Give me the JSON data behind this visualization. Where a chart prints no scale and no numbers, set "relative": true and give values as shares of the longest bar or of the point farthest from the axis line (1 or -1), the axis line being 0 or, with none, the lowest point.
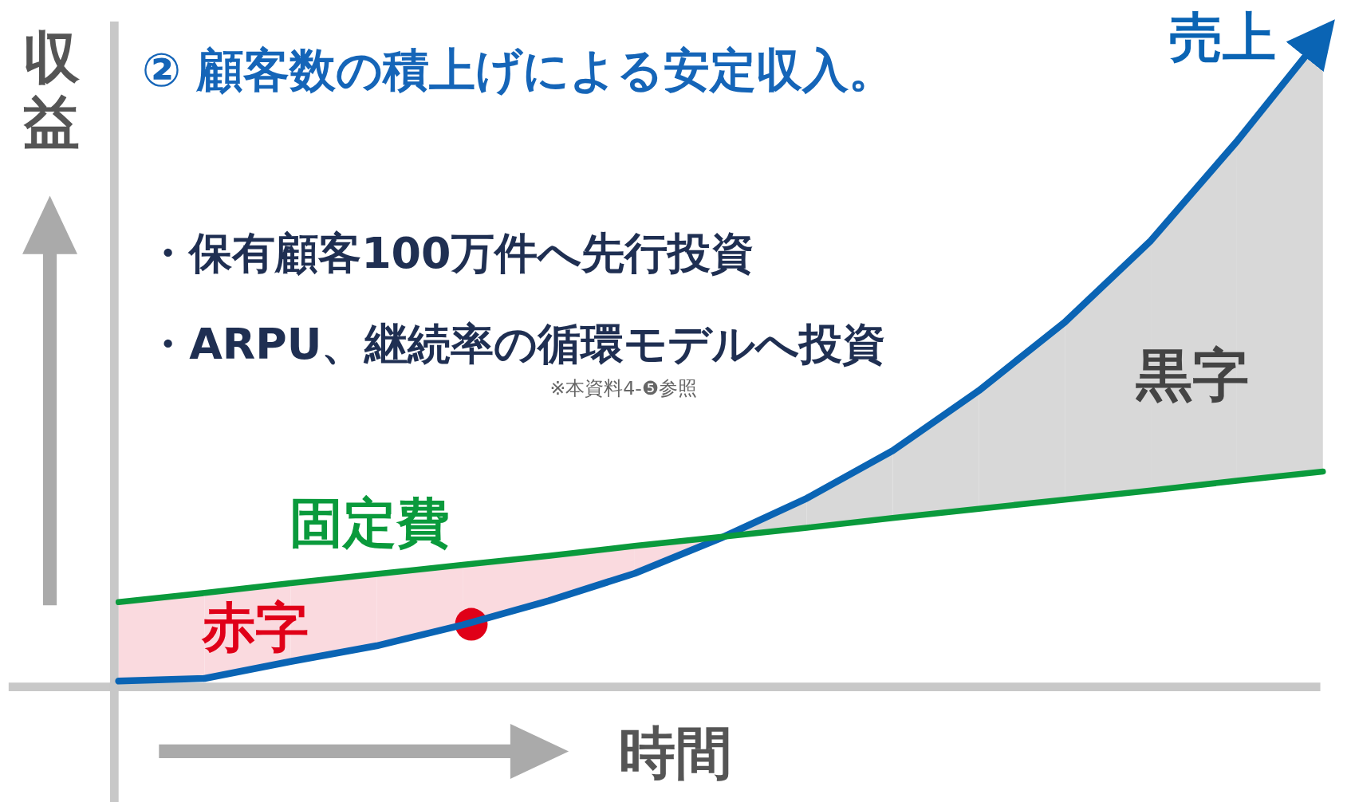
{
  "chart_data": {
    "type": "line",
    "relative": true,
    "legend": false,
    "title": "② 顧客数の積上げによる安定収入。",
    "xlabel": "時間",
    "ylabel": "収益",
    "categories": [
      null,
      null,
      null,
      null,
      null,
      null,
      null,
      null,
      null,
      null,
      null,
      null,
      null,
      null,
      null
    ],
    "series": [
      {
        "name": "売上",
        "color": "#0a64b4",
        "values": [
          0.009,
          0.013,
          0.039,
          0.063,
          0.095,
          0.132,
          0.174,
          0.228,
          0.289,
          0.362,
          0.454,
          0.559,
          0.684,
          0.836,
          1.0
        ]
      },
      {
        "name": "固定費",
        "color": "#0a9a3c",
        "values": [
          0.13,
          0.144,
          0.159,
          0.173,
          0.187,
          0.201,
          0.216,
          0.23,
          0.244,
          0.259,
          0.273,
          0.287,
          0.301,
          0.316,
          0.33
        ]
      }
    ],
    "annotations": [
      "・保有顧客100万件へ先行投資",
      "・ARPU、継続率の循環モデルへ投資",
      "※本資料4-❺参照",
      "赤字",
      "黒字"
    ]
  }
}
